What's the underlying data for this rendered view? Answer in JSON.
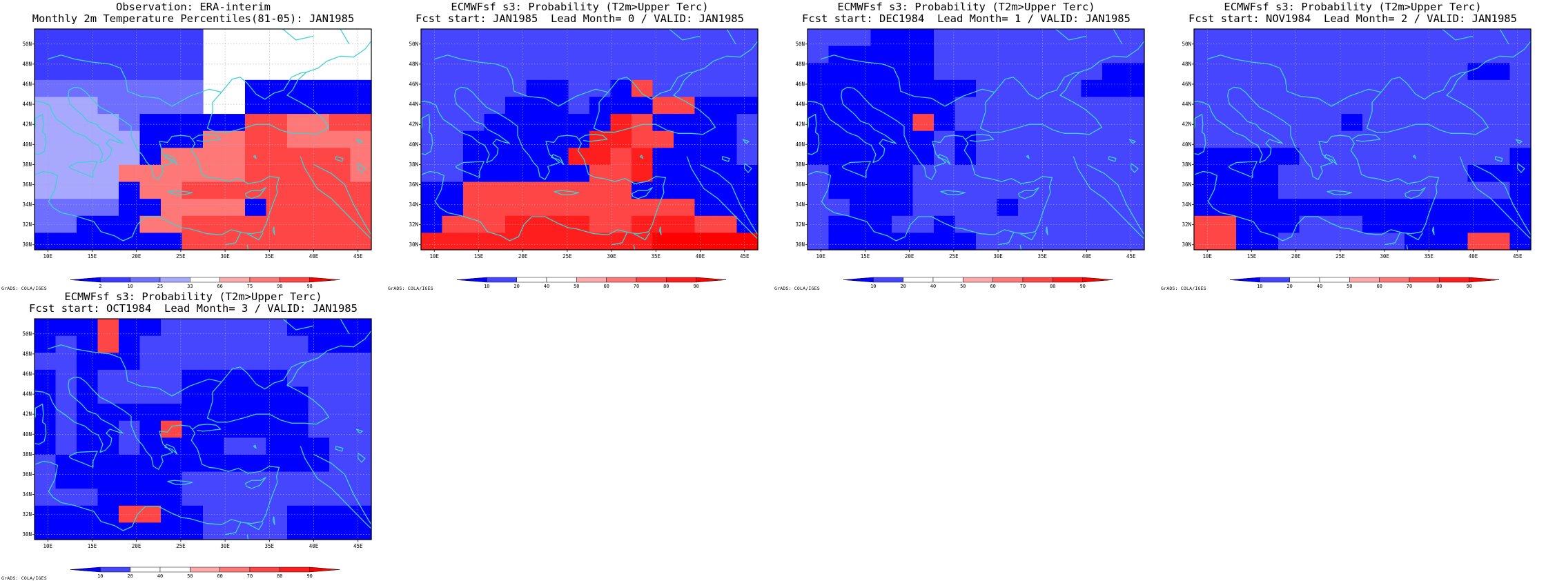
{
  "figure": {
    "panels": [
      {
        "id": "obs",
        "title_line1": "Observation: ERA-interim",
        "title_line2": "Monthly 2m Temperature Percentiles(81-05): JAN1985",
        "colorbar_labels": [
          "2",
          "10",
          "25",
          "33",
          "66",
          "75",
          "90",
          "98"
        ],
        "colorbar_colors": [
          "#0000ff",
          "#3c3cff",
          "#6e6eff",
          "#a8a8ff",
          "#ffffff",
          "#ffaaaa",
          "#ff7878",
          "#ff4646",
          "#ff0000"
        ],
        "grid": [
          "1111111144444444",
          "1111111144444444",
          "1111111144444444",
          "2222222244000000",
          "3332222244000000",
          "3333200000776677",
          "3333300066776666",
          "3333306666777776",
          "3333666666777776",
          "3333066777777777",
          "2222006666077777",
          "2200066777777777",
          "0000000777777777"
        ]
      },
      {
        "id": "lead0",
        "title_line1": "ECMWFsf s3: Probability (T2m>Upper Terc)",
        "title_line2": "Fcst start: JAN1985  Lead Month= 0 / VALID: JAN1985",
        "colorbar_labels": [
          "10",
          "20",
          "40",
          "50",
          "60",
          "70",
          "80",
          "90"
        ],
        "colorbar_colors": [
          "#0000ff",
          "#4646ff",
          "#ffffff",
          "#ffffff",
          "#ffaaaa",
          "#ff7878",
          "#ff4646",
          "#ff1e1e",
          "#ff0000"
        ],
        "grid": [
          "1111111111111111",
          "1111111111111111",
          "1111111111111111",
          "1111100110611111",
          "1111000100066000",
          "1110000007600001",
          "1100000077660001",
          "1100000776700001",
          "1100000066700000",
          "0066666666000000",
          "0066666666666000",
          "0666777766777660",
          "7777777777788888"
        ]
      },
      {
        "id": "lead1",
        "title_line1": "ECMWFsf s3: Probability (T2m>Upper Terc)",
        "title_line2": "Fcst start: DEC1984  Lead Month= 1 / VALID: JAN1985",
        "colorbar_labels": [
          "10",
          "20",
          "40",
          "50",
          "60",
          "70",
          "80",
          "90"
        ],
        "colorbar_colors": [
          "#0000ff",
          "#4646ff",
          "#ffffff",
          "#ffffff",
          "#ffaaaa",
          "#ff7878",
          "#ff4646",
          "#ff1e1e",
          "#ff0000"
        ],
        "grid": [
          "1110001111111111",
          "1000001111111111",
          "0000001111111100",
          "0000000011111000",
          "0000000111111111",
          "0000060111111111",
          "0000001011111111",
          "0000001011111111",
          "1000011111111111",
          "1000011111111111",
          "1100011110111111",
          "1000110111111111",
          "1000000011111111"
        ]
      },
      {
        "id": "lead2",
        "title_line1": "ECMWFsf s3: Probability (T2m>Upper Terc)",
        "title_line2": "Fcst start: NOV1984  Lead Month= 2 / VALID: JAN1985",
        "colorbar_labels": [
          "10",
          "20",
          "40",
          "50",
          "60",
          "70",
          "80",
          "90"
        ],
        "colorbar_colors": [
          "#0000ff",
          "#4646ff",
          "#ffffff",
          "#ffffff",
          "#ffaaaa",
          "#ff7878",
          "#ff4646",
          "#ff1e1e",
          "#ff0000"
        ],
        "grid": [
          "1111111111111111",
          "1111111111111111",
          "1111111111111001",
          "1111111111111111",
          "1111111111111111",
          "1111111011111111",
          "1111111111111111",
          "0000011111111110",
          "0000111111111000",
          "0000111111111110",
          "0000000000000000",
          "6600011100000000",
          "6600111111000660"
        ]
      },
      {
        "id": "lead3",
        "title_line1": "ECMWFsf s3: Probability (T2m>Upper Terc)",
        "title_line2": "Fcst start: OCT1984  Lead Month= 3 / VALID: JAN1985",
        "colorbar_labels": [
          "10",
          "20",
          "40",
          "50",
          "60",
          "70",
          "80",
          "90"
        ],
        "colorbar_colors": [
          "#0000ff",
          "#4646ff",
          "#ffffff",
          "#ffffff",
          "#ffaaaa",
          "#ff7878",
          "#ff4646",
          "#ff1e1e",
          "#ff0000"
        ],
        "grid": [
          "0006001111110000",
          "0106011111111000",
          "1100011111111111",
          "0101111000001111",
          "0101111000000111",
          "0100000000000111",
          "0100106000000111",
          "0100100001100011",
          "1000000000000011",
          "1000000111111111",
          "1110000111111111",
          "0000660011110000",
          "0000000011110000"
        ]
      }
    ],
    "lon_ticks": [
      "10E",
      "15E",
      "20E",
      "25E",
      "30E",
      "35E",
      "40E",
      "45E"
    ],
    "lat_ticks": [
      "30N",
      "32N",
      "34N",
      "36N",
      "38N",
      "40N",
      "42N",
      "44N",
      "46N",
      "48N",
      "50N"
    ],
    "credit": "GrADS: COLA/IGES",
    "colors": {
      "coast": "#40d0d0",
      "gridline": "#aaaaaa"
    }
  }
}
